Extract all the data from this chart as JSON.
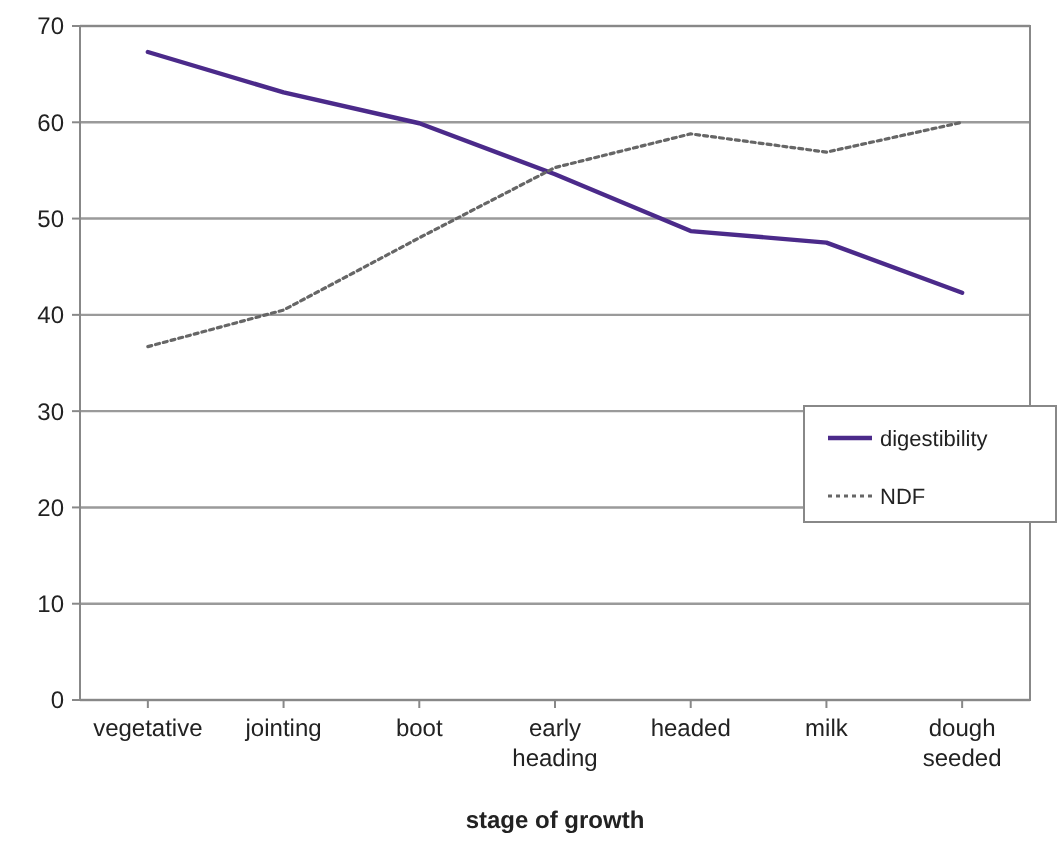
{
  "chart_data": {
    "type": "line",
    "xlabel": "stage of growth",
    "categories": [
      "vegetative",
      "jointing",
      "boot",
      "early heading",
      "headed",
      "milk",
      "dough seeded"
    ],
    "series": [
      {
        "name": "digestibility",
        "color": "#4b2a8a",
        "line_style": "solid",
        "values": [
          67.3,
          63.1,
          59.9,
          54.6,
          48.7,
          47.5,
          42.3
        ]
      },
      {
        "name": "NDF",
        "color": "#666666",
        "line_style": "dotted",
        "values": [
          36.7,
          40.5,
          48,
          55.3,
          58.8,
          56.9,
          60
        ]
      }
    ],
    "ylim": [
      0,
      70
    ],
    "yticks": [
      0,
      10,
      20,
      30,
      40,
      50,
      60,
      70
    ],
    "grid": "y",
    "legend": "right",
    "marker": "none"
  }
}
